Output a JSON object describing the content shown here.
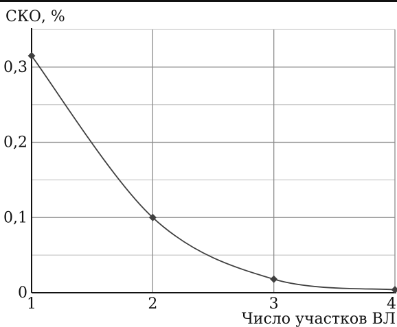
{
  "chart_data": {
    "type": "line",
    "ylabel": "СКО, %",
    "xlabel": "Число участков ВЛ",
    "x": [
      1,
      2,
      3,
      4
    ],
    "xticks": [
      "1",
      "2",
      "3",
      "4"
    ],
    "yticks": [
      {
        "value": 0,
        "label": "0"
      },
      {
        "value": 0.1,
        "label": "0,1"
      },
      {
        "value": 0.2,
        "label": "0,2"
      },
      {
        "value": 0.3,
        "label": "0,3"
      }
    ],
    "series": [
      {
        "values": [
          0.315,
          0.1,
          0.018,
          0.004
        ],
        "color": "#404040",
        "marker": "diamond"
      }
    ],
    "xlim": [
      1,
      4
    ],
    "ylim": [
      0,
      0.35
    ],
    "grid": true,
    "grid_color": "#8c8c8c",
    "line_color": "#404040"
  }
}
